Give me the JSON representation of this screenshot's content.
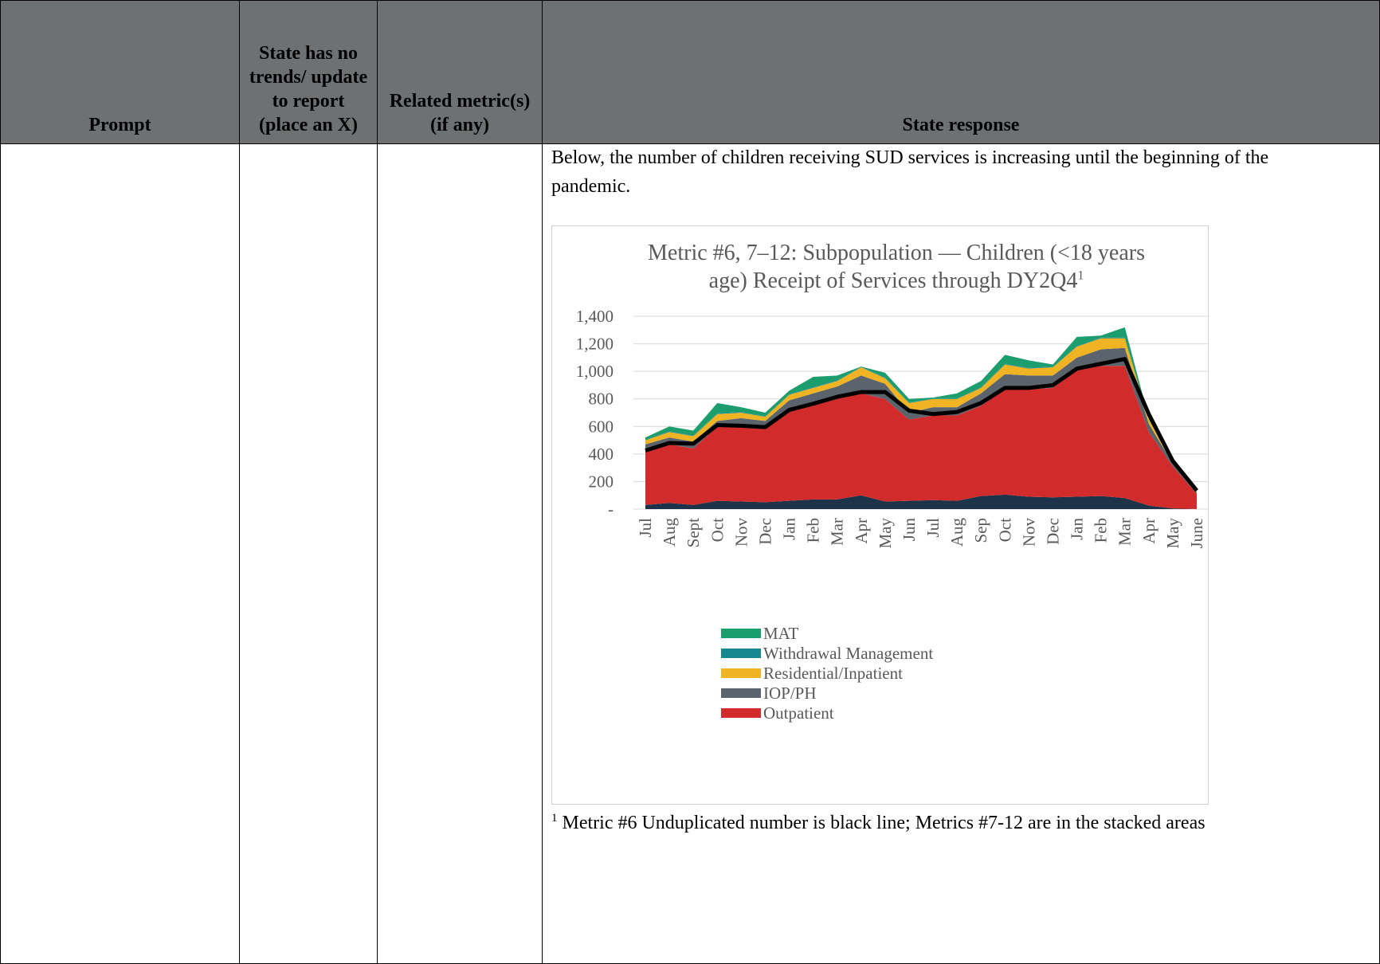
{
  "table": {
    "headers": [
      "Prompt",
      "State has no trends/ update to report (place an X)",
      "Related metric(s) (if any)",
      "State response"
    ]
  },
  "response": {
    "text": "Below, the number of children receiving SUD services is increasing until the beginning of the pandemic.",
    "chart_data": {
      "type": "stacked_area",
      "title": "Metric #6, 7–12: Subpopulation — Children (<18 years age) Receipt of Services through DY2Q4",
      "title_footnote": "1",
      "categories": [
        "Jul",
        "Aug",
        "Sept",
        "Oct",
        "Nov",
        "Dec",
        "Jan",
        "Feb",
        "Mar",
        "Apr",
        "May",
        "Jun",
        "Jul",
        "Aug",
        "Sep",
        "Oct",
        "Nov",
        "Dec",
        "Jan",
        "Feb",
        "Mar",
        "Apr",
        "May",
        "June"
      ],
      "series": [
        {
          "name": null,
          "color": "#1c3349",
          "values": [
            30,
            45,
            30,
            60,
            55,
            50,
            60,
            70,
            70,
            100,
            55,
            60,
            65,
            60,
            95,
            105,
            90,
            85,
            90,
            95,
            80,
            25,
            5,
            0
          ]
        },
        {
          "name": "Outpatient",
          "color": "#d12b2b",
          "values": [
            390,
            425,
            410,
            540,
            540,
            540,
            650,
            690,
            730,
            740,
            745,
            590,
            615,
            620,
            655,
            765,
            780,
            795,
            920,
            945,
            960,
            535,
            305,
            110
          ]
        },
        {
          "name": "IOP/PH",
          "color": "#5b646d",
          "values": [
            50,
            50,
            50,
            40,
            65,
            50,
            80,
            80,
            90,
            130,
            110,
            50,
            60,
            60,
            90,
            110,
            100,
            90,
            90,
            120,
            130,
            60,
            20,
            10
          ]
        },
        {
          "name": "Residential/Inpatient",
          "color": "#f0b323",
          "values": [
            30,
            40,
            40,
            50,
            40,
            30,
            40,
            40,
            40,
            60,
            40,
            70,
            60,
            60,
            40,
            70,
            50,
            60,
            80,
            80,
            70,
            30,
            10,
            5
          ]
        },
        {
          "name": "Withdrawal Management",
          "color": "#17888f",
          "values": [
            5,
            5,
            5,
            5,
            5,
            5,
            5,
            5,
            5,
            5,
            5,
            5,
            5,
            5,
            5,
            5,
            5,
            5,
            5,
            5,
            5,
            5,
            5,
            5
          ]
        },
        {
          "name": "MAT",
          "color": "#1c9d6e",
          "values": [
            15,
            35,
            35,
            75,
            35,
            25,
            25,
            75,
            35,
            0,
            35,
            25,
            5,
            35,
            45,
            65,
            55,
            15,
            65,
            15,
            75,
            5,
            0,
            0
          ]
        }
      ],
      "line": {
        "color": "#000000",
        "values": [
          425,
          480,
          475,
          610,
          605,
          595,
          720,
          765,
          815,
          850,
          850,
          715,
          690,
          705,
          770,
          880,
          880,
          900,
          1020,
          1055,
          1090,
          690,
          350,
          135
        ]
      },
      "legend_order": [
        5,
        4,
        3,
        2,
        1
      ],
      "ylim": [
        0,
        1400
      ],
      "yticks": [
        {
          "value": 0,
          "label": "-"
        },
        200,
        400,
        600,
        800,
        {
          "value": 1000,
          "label": "1,000"
        },
        {
          "value": 1200,
          "label": "1,200"
        },
        {
          "value": 1400,
          "label": "1,400"
        }
      ],
      "grid": true
    },
    "footnote": {
      "mark": "1",
      "text": "Metric #6 Unduplicated number is black line; Metrics #7-12 are in the stacked areas"
    }
  }
}
